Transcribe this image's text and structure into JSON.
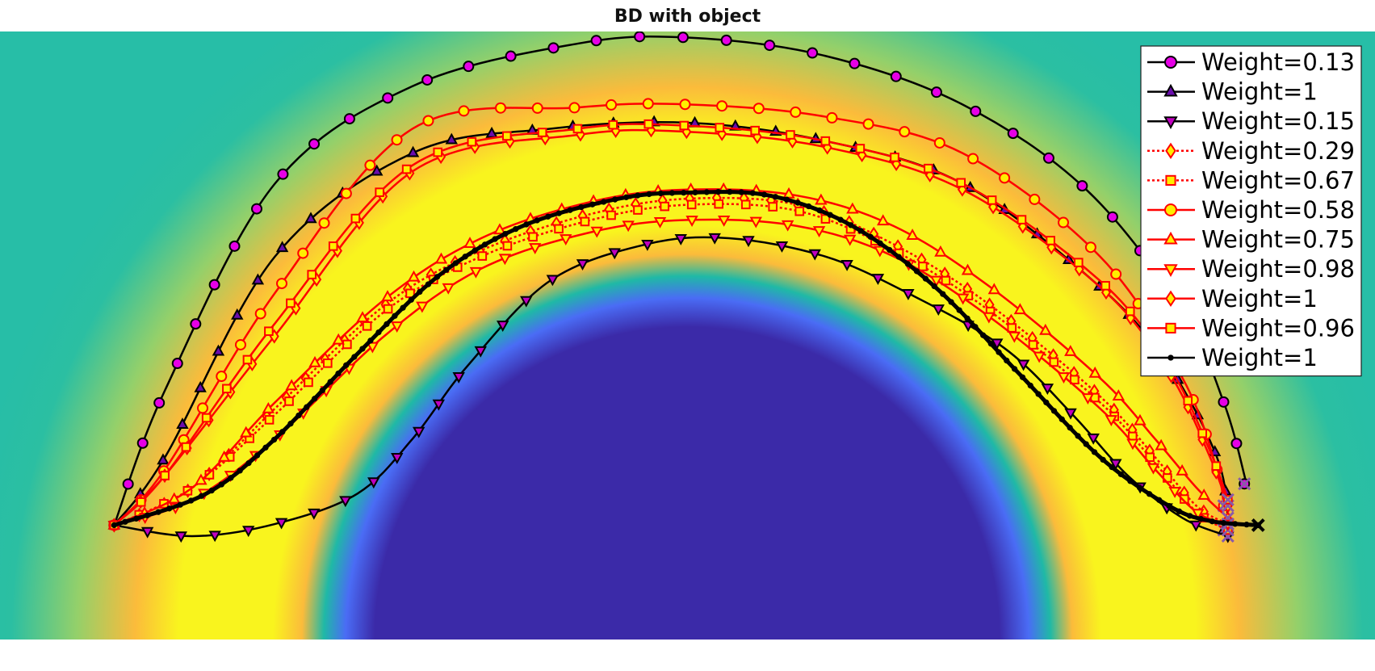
{
  "chart_data": {
    "type": "line",
    "title": "BD with object",
    "xlabel": "",
    "ylabel": "",
    "xlim": [
      0,
      1
    ],
    "ylim": [
      0,
      1
    ],
    "grid": false,
    "legend_position": "top-right",
    "background": {
      "type": "heatmap",
      "description_colors": [
        "#3b2aa8",
        "#4a6cf5",
        "#1fb9a6",
        "#fbbb3b",
        "#f9f41e",
        "#2bbfa2"
      ],
      "obstacle_center": [
        0.54,
        0.0
      ],
      "obstacle_radius": 0.44
    },
    "start": [
      0.083,
      0.188
    ],
    "series": [
      {
        "name": "Weight=0.13",
        "color": "#000000",
        "line": "solid",
        "marker": "circle",
        "marker_fill": "#e600e6",
        "count": 38,
        "points": [
          [
            0.083,
            0.188
          ],
          [
            0.12,
            0.41
          ],
          [
            0.2,
            0.75
          ],
          [
            0.3,
            0.91
          ],
          [
            0.42,
            0.98
          ],
          [
            0.5,
            0.99
          ],
          [
            0.6,
            0.96
          ],
          [
            0.7,
            0.88
          ],
          [
            0.79,
            0.74
          ],
          [
            0.86,
            0.54
          ],
          [
            0.89,
            0.39
          ],
          [
            0.905,
            0.27
          ],
          [
            0.905,
            0.256
          ]
        ]
      },
      {
        "name": "Weight=1",
        "color": "#000000",
        "line": "solid",
        "marker": "triangle-up",
        "marker_fill": "#6a0dad",
        "count": 38,
        "points": [
          [
            0.083,
            0.188
          ],
          [
            0.12,
            0.3
          ],
          [
            0.2,
            0.63
          ],
          [
            0.3,
            0.8
          ],
          [
            0.4,
            0.84
          ],
          [
            0.5,
            0.85
          ],
          [
            0.6,
            0.82
          ],
          [
            0.7,
            0.75
          ],
          [
            0.8,
            0.58
          ],
          [
            0.85,
            0.45
          ],
          [
            0.885,
            0.3
          ],
          [
            0.893,
            0.2
          ],
          [
            0.89,
            0.18
          ]
        ]
      },
      {
        "name": "Weight=0.15",
        "color": "#000000",
        "line": "solid",
        "marker": "triangle-down",
        "marker_fill": "#c000c0",
        "count": 40,
        "points": [
          [
            0.083,
            0.188
          ],
          [
            0.14,
            0.17
          ],
          [
            0.2,
            0.19
          ],
          [
            0.26,
            0.24
          ],
          [
            0.3,
            0.33
          ],
          [
            0.34,
            0.45
          ],
          [
            0.4,
            0.59
          ],
          [
            0.47,
            0.65
          ],
          [
            0.53,
            0.66
          ],
          [
            0.6,
            0.63
          ],
          [
            0.66,
            0.57
          ],
          [
            0.73,
            0.48
          ],
          [
            0.78,
            0.37
          ],
          [
            0.82,
            0.27
          ],
          [
            0.86,
            0.2
          ],
          [
            0.893,
            0.17
          ]
        ]
      },
      {
        "name": "Weight=0.29",
        "color": "#ff0000",
        "line": "dotted",
        "marker": "diamond",
        "marker_fill": "#ffee00",
        "count": 50,
        "points": [
          [
            0.083,
            0.188
          ],
          [
            0.14,
            0.25
          ],
          [
            0.2,
            0.38
          ],
          [
            0.28,
            0.55
          ],
          [
            0.35,
            0.64
          ],
          [
            0.43,
            0.7
          ],
          [
            0.5,
            0.725
          ],
          [
            0.58,
            0.715
          ],
          [
            0.65,
            0.65
          ],
          [
            0.72,
            0.55
          ],
          [
            0.8,
            0.4
          ],
          [
            0.84,
            0.3
          ],
          [
            0.87,
            0.22
          ],
          [
            0.893,
            0.19
          ]
        ]
      },
      {
        "name": "Weight=0.67",
        "color": "#ff0000",
        "line": "dotted",
        "marker": "square",
        "marker_fill": "#ffee00",
        "count": 50,
        "points": [
          [
            0.083,
            0.188
          ],
          [
            0.14,
            0.25
          ],
          [
            0.2,
            0.37
          ],
          [
            0.28,
            0.54
          ],
          [
            0.35,
            0.63
          ],
          [
            0.43,
            0.69
          ],
          [
            0.5,
            0.715
          ],
          [
            0.58,
            0.705
          ],
          [
            0.65,
            0.64
          ],
          [
            0.72,
            0.54
          ],
          [
            0.8,
            0.39
          ],
          [
            0.84,
            0.29
          ],
          [
            0.87,
            0.21
          ],
          [
            0.893,
            0.18
          ]
        ]
      },
      {
        "name": "Weight=0.58",
        "color": "#ff0000",
        "line": "solid",
        "marker": "circle",
        "marker_fill": "#ffee00",
        "count": 42,
        "points": [
          [
            0.083,
            0.188
          ],
          [
            0.12,
            0.28
          ],
          [
            0.2,
            0.57
          ],
          [
            0.3,
            0.84
          ],
          [
            0.42,
            0.875
          ],
          [
            0.5,
            0.88
          ],
          [
            0.6,
            0.86
          ],
          [
            0.7,
            0.8
          ],
          [
            0.8,
            0.63
          ],
          [
            0.86,
            0.43
          ],
          [
            0.885,
            0.28
          ],
          [
            0.89,
            0.22
          ]
        ]
      },
      {
        "name": "Weight=0.75",
        "color": "#ff0000",
        "line": "solid",
        "marker": "triangle-up",
        "marker_fill": "#ffee00",
        "count": 42,
        "points": [
          [
            0.083,
            0.188
          ],
          [
            0.14,
            0.25
          ],
          [
            0.2,
            0.39
          ],
          [
            0.28,
            0.56
          ],
          [
            0.35,
            0.66
          ],
          [
            0.43,
            0.72
          ],
          [
            0.5,
            0.74
          ],
          [
            0.58,
            0.73
          ],
          [
            0.65,
            0.68
          ],
          [
            0.72,
            0.58
          ],
          [
            0.8,
            0.43
          ],
          [
            0.84,
            0.33
          ],
          [
            0.87,
            0.25
          ],
          [
            0.893,
            0.2
          ]
        ]
      },
      {
        "name": "Weight=0.98",
        "color": "#ff0000",
        "line": "solid",
        "marker": "triangle-down",
        "marker_fill": "#ffee00",
        "count": 42,
        "points": [
          [
            0.083,
            0.188
          ],
          [
            0.14,
            0.23
          ],
          [
            0.2,
            0.33
          ],
          [
            0.28,
            0.5
          ],
          [
            0.35,
            0.61
          ],
          [
            0.43,
            0.67
          ],
          [
            0.5,
            0.69
          ],
          [
            0.58,
            0.68
          ],
          [
            0.65,
            0.63
          ],
          [
            0.72,
            0.53
          ],
          [
            0.8,
            0.38
          ],
          [
            0.84,
            0.28
          ],
          [
            0.87,
            0.21
          ],
          [
            0.893,
            0.19
          ]
        ]
      },
      {
        "name": "Weight=1",
        "color": "#ff0000",
        "line": "solid",
        "marker": "diamond",
        "marker_fill": "#ffee00",
        "count": 42,
        "points": [
          [
            0.083,
            0.188
          ],
          [
            0.12,
            0.27
          ],
          [
            0.2,
            0.5
          ],
          [
            0.3,
            0.77
          ],
          [
            0.42,
            0.83
          ],
          [
            0.5,
            0.835
          ],
          [
            0.6,
            0.81
          ],
          [
            0.7,
            0.74
          ],
          [
            0.8,
            0.58
          ],
          [
            0.85,
            0.44
          ],
          [
            0.88,
            0.3
          ],
          [
            0.893,
            0.22
          ]
        ]
      },
      {
        "name": "Weight=0.96",
        "color": "#ff0000",
        "line": "solid",
        "marker": "square",
        "marker_fill": "#ffee00",
        "count": 42,
        "points": [
          [
            0.083,
            0.188
          ],
          [
            0.12,
            0.27
          ],
          [
            0.2,
            0.52
          ],
          [
            0.3,
            0.78
          ],
          [
            0.42,
            0.84
          ],
          [
            0.5,
            0.845
          ],
          [
            0.6,
            0.82
          ],
          [
            0.7,
            0.75
          ],
          [
            0.8,
            0.59
          ],
          [
            0.85,
            0.45
          ],
          [
            0.88,
            0.31
          ],
          [
            0.893,
            0.23
          ]
        ]
      },
      {
        "name": "Weight=1",
        "color": "#000000",
        "line": "solid-thick",
        "marker": "dot",
        "marker_fill": "#000000",
        "count": 120,
        "points": [
          [
            0.083,
            0.188
          ],
          [
            0.15,
            0.24
          ],
          [
            0.2,
            0.33
          ],
          [
            0.26,
            0.47
          ],
          [
            0.32,
            0.6
          ],
          [
            0.38,
            0.68
          ],
          [
            0.45,
            0.725
          ],
          [
            0.5,
            0.735
          ],
          [
            0.56,
            0.73
          ],
          [
            0.62,
            0.68
          ],
          [
            0.68,
            0.58
          ],
          [
            0.74,
            0.44
          ],
          [
            0.8,
            0.3
          ],
          [
            0.85,
            0.22
          ],
          [
            0.88,
            0.195
          ],
          [
            0.915,
            0.188
          ]
        ]
      }
    ]
  }
}
